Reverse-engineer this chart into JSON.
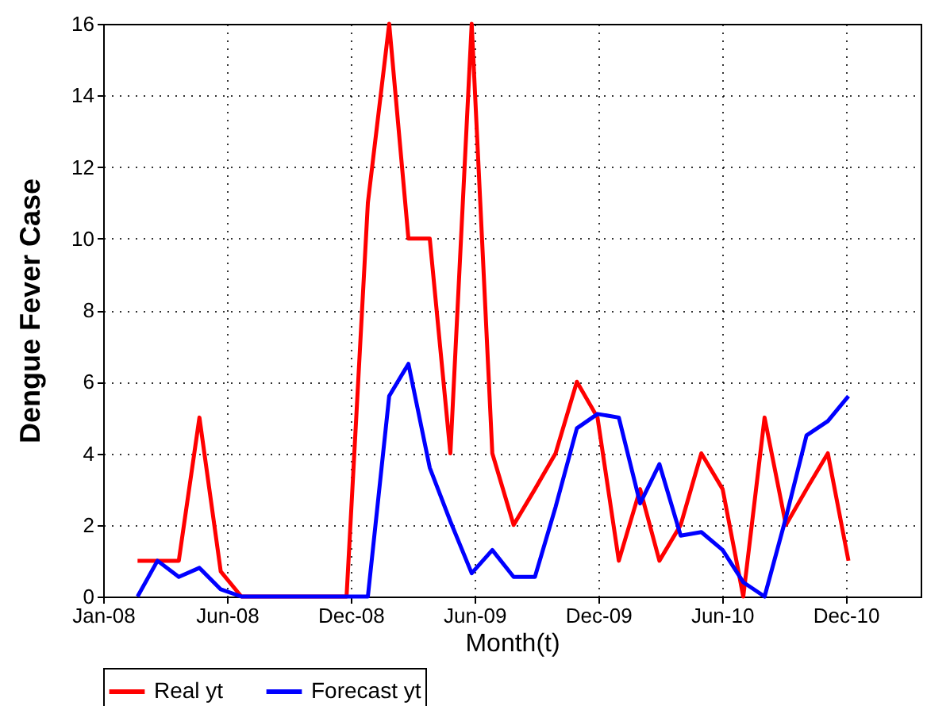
{
  "chart_data": {
    "type": "line",
    "xlabel": "Month(t)",
    "ylabel": "Dengue Fever Case",
    "x": [
      "2008-02-20",
      "2008-03-20",
      "2008-04-20",
      "2008-05-20",
      "2008-06-20",
      "2008-07-20",
      "2008-08-20",
      "2008-09-20",
      "2008-10-20",
      "2008-11-20",
      "2008-12-20",
      "2009-01-20",
      "2009-02-20",
      "2009-03-20",
      "2009-04-20",
      "2009-05-20",
      "2009-06-20",
      "2009-07-20",
      "2009-08-20",
      "2009-09-20",
      "2009-10-20",
      "2009-11-20",
      "2009-12-20",
      "2010-01-20",
      "2010-02-20",
      "2010-03-20",
      "2010-04-20",
      "2010-05-20",
      "2010-06-20",
      "2010-07-20",
      "2010-08-20",
      "2010-09-20",
      "2010-10-20",
      "2010-11-20",
      "2010-12-20"
    ],
    "series": [
      {
        "name": "Real yt",
        "color": "#ff0000",
        "values": [
          1,
          1,
          1,
          5,
          0.7,
          0,
          0,
          0,
          0,
          0,
          0,
          11,
          16,
          10,
          10,
          4,
          16,
          4,
          2,
          3,
          4,
          6,
          5,
          1,
          3,
          1,
          2,
          4,
          3,
          0,
          5,
          2,
          3,
          4,
          1
        ]
      },
      {
        "name": "Forecast yt",
        "color": "#0000ff",
        "values": [
          0,
          1,
          0.55,
          0.8,
          0.2,
          0,
          0,
          0,
          0,
          0,
          0,
          0,
          5.6,
          6.5,
          3.6,
          2.1,
          0.65,
          1.3,
          0.55,
          0.55,
          2.5,
          4.7,
          5.1,
          5,
          2.6,
          3.7,
          1.7,
          1.8,
          1.3,
          0.4,
          0,
          2.2,
          4.5,
          4.9,
          5.6
        ]
      }
    ],
    "xlim": [
      "2008-01-01",
      "2011-04-04"
    ],
    "xticks": [
      {
        "value": "2008-01-01",
        "label": "Jan-08"
      },
      {
        "value": "2008-06-29",
        "label": "Jun-08"
      },
      {
        "value": "2008-12-26",
        "label": "Dec-08"
      },
      {
        "value": "2009-06-24",
        "label": "Jun-09"
      },
      {
        "value": "2009-12-21",
        "label": "Dec-09"
      },
      {
        "value": "2010-06-19",
        "label": "Jun-10"
      },
      {
        "value": "2010-12-16",
        "label": "Dec-10"
      }
    ],
    "ylim": [
      0,
      16
    ],
    "yticks": [
      0,
      2,
      4,
      6,
      8,
      10,
      12,
      14,
      16
    ],
    "grid": true,
    "legend": "bottom",
    "marker": "none",
    "line_style": "solid"
  }
}
